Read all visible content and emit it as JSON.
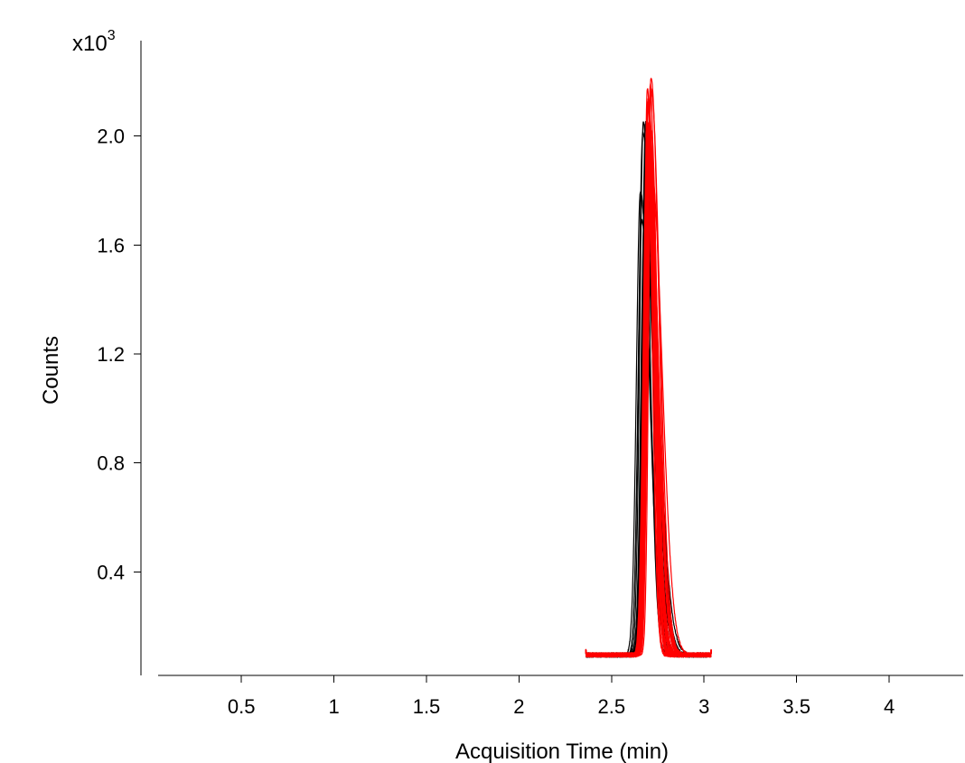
{
  "chart_data": {
    "type": "line",
    "xlabel": "Acquisition Time (min)",
    "ylabel": "Counts",
    "y_multiplier_base": "x10",
    "y_multiplier_exp": "3",
    "xlim": [
      0.05,
      4.4
    ],
    "ylim": [
      0.02,
      2.35
    ],
    "x_ticks": [
      0.5,
      1,
      1.5,
      2,
      2.5,
      3,
      3.5,
      4
    ],
    "x_tick_labels": [
      "0.5",
      "1",
      "1.5",
      "2",
      "2.5",
      "3",
      "3.5",
      "4"
    ],
    "y_ticks": [
      0.4,
      0.8,
      1.2,
      1.6,
      2.0
    ],
    "y_tick_labels": [
      "0.4",
      "0.8",
      "1.2",
      "1.6",
      "2.0"
    ],
    "grid": false,
    "legend": "none",
    "series": [
      {
        "color": "#000000",
        "trace_count": 14,
        "x_start": 2.36,
        "x_end": 3.04,
        "baseline": 0.095,
        "peak_x": [
          2.655,
          2.7
        ],
        "peak_y": [
          1.65,
          2.12
        ],
        "width": [
          0.018,
          0.03
        ]
      },
      {
        "color": "#ff0000",
        "trace_count": 24,
        "x_start": 2.36,
        "x_end": 3.04,
        "baseline": 0.095,
        "peak_x": [
          2.688,
          2.718
        ],
        "peak_y": [
          1.85,
          2.23
        ],
        "width": [
          0.014,
          0.028
        ]
      }
    ]
  }
}
